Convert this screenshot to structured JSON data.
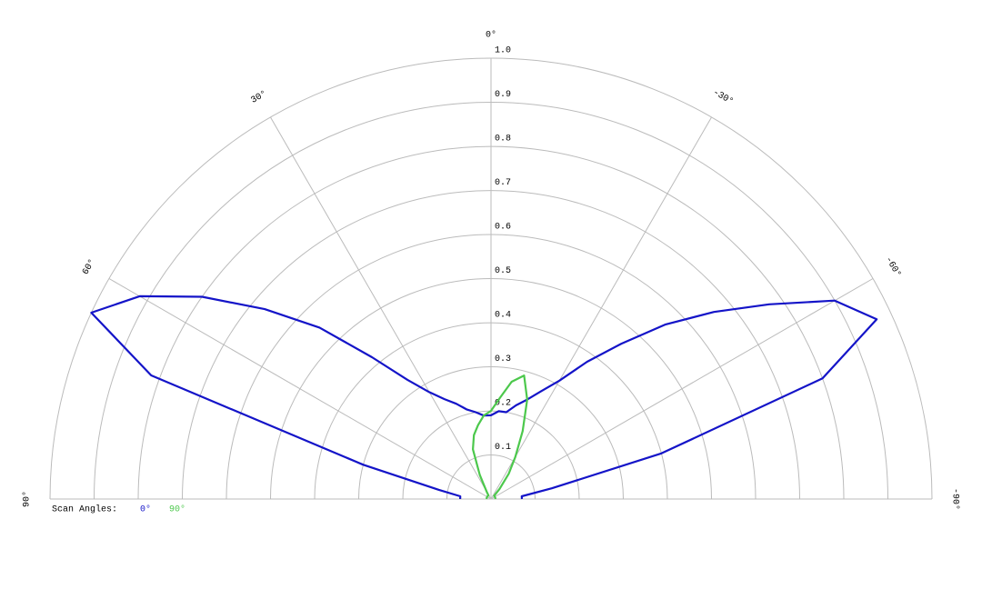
{
  "chart_data": {
    "type": "polar",
    "legend_title": "Scan Angles:",
    "x": [
      90,
      85,
      80,
      75,
      70,
      65,
      60,
      55,
      50,
      45,
      40,
      35,
      30,
      25,
      20,
      15,
      10,
      5,
      0,
      -5,
      -10,
      -15,
      -20,
      -25,
      -30,
      -35,
      -40,
      -45,
      -50,
      -55,
      -60,
      -65,
      -70,
      -75,
      -80,
      -85,
      -90
    ],
    "series": [
      {
        "name": "0°",
        "color": "#1414c8",
        "values": [
          0.07,
          0.07,
          0.12,
          0.3,
          0.82,
          1.0,
          0.92,
          0.8,
          0.67,
          0.55,
          0.42,
          0.33,
          0.28,
          0.25,
          0.23,
          0.21,
          0.2,
          0.19,
          0.19,
          0.2,
          0.2,
          0.22,
          0.24,
          0.27,
          0.31,
          0.38,
          0.46,
          0.56,
          0.66,
          0.77,
          0.9,
          0.965,
          0.8,
          0.4,
          0.14,
          0.07,
          0.07
        ]
      },
      {
        "name": "90°",
        "color": "#4cc84c",
        "values": [
          0.01,
          0.01,
          0.01,
          0.01,
          0.01,
          0.01,
          0.01,
          0.01,
          0.01,
          0.01,
          0.01,
          0.01,
          0.02,
          0.06,
          0.12,
          0.15,
          0.17,
          0.19,
          0.2,
          0.23,
          0.27,
          0.29,
          0.24,
          0.17,
          0.11,
          0.07,
          0.03,
          0.01,
          0.01,
          0.01,
          0.01,
          0.01,
          0.01,
          0.01,
          0.01,
          0.01,
          0.01
        ]
      }
    ],
    "rlim": [
      0,
      1
    ],
    "rticks": [
      0.1,
      0.2,
      0.3,
      0.4,
      0.5,
      0.6,
      0.7,
      0.8,
      0.9,
      {
        "value": 1,
        "label": "1.0"
      }
    ],
    "angle_ticks": [
      {
        "value": 90,
        "label": "90°"
      },
      {
        "value": 60,
        "label": "60°"
      },
      {
        "value": 30,
        "label": "30°"
      },
      {
        "value": 0,
        "label": "0°"
      },
      {
        "value": -30,
        "label": "-30°"
      },
      {
        "value": -60,
        "label": "-60°"
      },
      {
        "value": -90,
        "label": "-90°"
      }
    ]
  }
}
